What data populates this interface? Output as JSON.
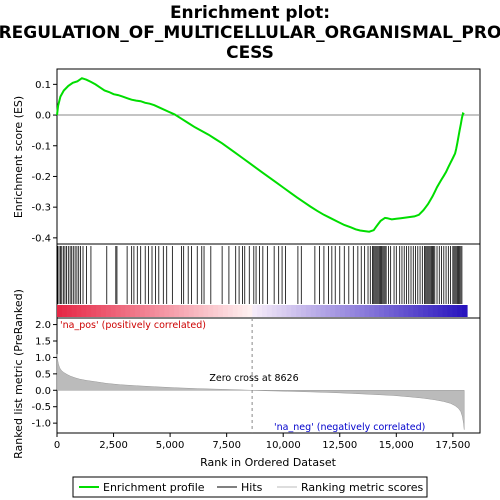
{
  "chart_data": {
    "type": "line",
    "title_lines": [
      "Enrichment plot:",
      "REGULATION_OF_MULTICELLULAR_ORGANISMAL_PRO",
      "CESS"
    ],
    "es_panel": {
      "ylabel": "Enrichment score (ES)",
      "ylim": [
        -0.42,
        0.15
      ],
      "yticks": [
        "0.1",
        "0.0",
        "-0.1",
        "-0.2",
        "-0.3",
        "-0.4"
      ],
      "ytick_values": [
        0.1,
        0.0,
        -0.1,
        -0.2,
        -0.3,
        -0.4
      ],
      "x": [
        0,
        50,
        150,
        300,
        500,
        700,
        900,
        1100,
        1300,
        1500,
        1700,
        1900,
        2100,
        2300,
        2500,
        2700,
        2900,
        3100,
        3300,
        3500,
        3700,
        3900,
        4100,
        4300,
        4600,
        4900,
        5200,
        5500,
        5800,
        6100,
        6400,
        6700,
        7000,
        7300,
        7600,
        7900,
        8200,
        8500,
        8800,
        9100,
        9400,
        9700,
        10000,
        10300,
        10600,
        10900,
        11200,
        11500,
        11800,
        12100,
        12400,
        12700,
        13000,
        13200,
        13400,
        13600,
        13800,
        14000,
        14100,
        14200,
        14300,
        14400,
        14500,
        14600,
        14700,
        14800,
        15000,
        15200,
        15400,
        15600,
        15800,
        16000,
        16200,
        16300,
        16400,
        16500,
        16600,
        16700,
        16800,
        16900,
        17000,
        17100,
        17200,
        17300,
        17400,
        17500,
        17600,
        17650,
        17700,
        17750,
        17800,
        17850,
        17900,
        17950,
        18000
      ],
      "values": [
        0.0,
        0.03,
        0.06,
        0.08,
        0.095,
        0.105,
        0.11,
        0.12,
        0.115,
        0.108,
        0.1,
        0.09,
        0.08,
        0.075,
        0.068,
        0.065,
        0.06,
        0.055,
        0.05,
        0.047,
        0.045,
        0.04,
        0.037,
        0.032,
        0.022,
        0.012,
        0.002,
        -0.012,
        -0.026,
        -0.04,
        -0.052,
        -0.064,
        -0.078,
        -0.092,
        -0.108,
        -0.124,
        -0.14,
        -0.156,
        -0.172,
        -0.188,
        -0.204,
        -0.22,
        -0.236,
        -0.252,
        -0.268,
        -0.283,
        -0.298,
        -0.312,
        -0.325,
        -0.336,
        -0.347,
        -0.358,
        -0.366,
        -0.372,
        -0.376,
        -0.378,
        -0.38,
        -0.375,
        -0.365,
        -0.355,
        -0.345,
        -0.34,
        -0.335,
        -0.336,
        -0.338,
        -0.34,
        -0.338,
        -0.336,
        -0.334,
        -0.332,
        -0.33,
        -0.325,
        -0.31,
        -0.3,
        -0.29,
        -0.278,
        -0.265,
        -0.25,
        -0.235,
        -0.222,
        -0.21,
        -0.198,
        -0.185,
        -0.17,
        -0.155,
        -0.14,
        -0.125,
        -0.11,
        -0.09,
        -0.07,
        -0.05,
        -0.03,
        -0.01,
        0.005,
        0.003
      ]
    },
    "hits_panel": {
      "positions": [
        30,
        90,
        150,
        210,
        280,
        350,
        420,
        500,
        580,
        650,
        720,
        800,
        880,
        960,
        1040,
        1150,
        1300,
        1500,
        2200,
        2600,
        2650,
        3100,
        3300,
        3400,
        3550,
        3700,
        3900,
        4050,
        4200,
        4350,
        4500,
        4700,
        4850,
        5100,
        5500,
        5600,
        5800,
        5950,
        6200,
        6400,
        6500,
        6800,
        7300,
        7600,
        7900,
        8050,
        8200,
        8300,
        8500,
        8700,
        8800,
        8950,
        9100,
        9300,
        9600,
        9800,
        9950,
        10100,
        10650,
        10800,
        11400,
        11600,
        11800,
        12000,
        12150,
        12300,
        12500,
        12700,
        12900,
        13100,
        13300,
        13450,
        13600,
        13750,
        13850,
        13950,
        14000,
        14050,
        14100,
        14150,
        14200,
        14250,
        14300,
        14350,
        14400,
        14450,
        14500,
        14550,
        14650,
        14750,
        14900,
        15000,
        15150,
        15250,
        15350,
        15450,
        15550,
        15650,
        15750,
        15850,
        15950,
        16050,
        16150,
        16250,
        16300,
        16350,
        16400,
        16450,
        16500,
        16550,
        16600,
        16650,
        16700,
        16800,
        16900,
        17000,
        17100,
        17200,
        17300,
        17400,
        17500,
        17550,
        17600,
        17650,
        17700,
        17750,
        17800,
        17850,
        17900
      ]
    },
    "metric_panel": {
      "ylabel": "Ranked list metric (PreRanked)",
      "ylim": [
        -1.3,
        2.2
      ],
      "yticks": [
        "2.0",
        "1.5",
        "1.0",
        "0.5",
        "0.0",
        "-0.5",
        "-1.0"
      ],
      "ytick_values": [
        2.0,
        1.5,
        1.0,
        0.5,
        0.0,
        -0.5,
        -1.0
      ],
      "x": [
        0,
        20,
        60,
        120,
        200,
        300,
        450,
        600,
        800,
        1000,
        1300,
        1700,
        2200,
        2800,
        3500,
        4300,
        5200,
        6200,
        7300,
        8000,
        8626,
        9300,
        10200,
        11200,
        12200,
        13200,
        14100,
        14900,
        15600,
        16200,
        16700,
        17100,
        17400,
        17600,
        17750,
        17850,
        17920,
        17970,
        18000
      ],
      "values": [
        1.1,
        0.95,
        0.8,
        0.68,
        0.6,
        0.54,
        0.48,
        0.43,
        0.38,
        0.34,
        0.3,
        0.26,
        0.21,
        0.17,
        0.14,
        0.11,
        0.08,
        0.05,
        0.03,
        0.015,
        0.0,
        -0.015,
        -0.03,
        -0.05,
        -0.07,
        -0.1,
        -0.13,
        -0.16,
        -0.2,
        -0.24,
        -0.29,
        -0.34,
        -0.4,
        -0.47,
        -0.55,
        -0.65,
        -0.8,
        -1.0,
        -1.2
      ],
      "zero_cross_label": "Zero cross at 8626",
      "zero_cross": 8626,
      "pos_label": "'na_pos' (positively correlated)",
      "neg_label": "'na_neg' (negatively correlated)"
    },
    "xlabel": "Rank in Ordered Dataset",
    "xlim": [
      0,
      18700
    ],
    "xticks": [
      "0",
      "2,500",
      "5,000",
      "7,500",
      "10,000",
      "12,500",
      "15,000",
      "17,500"
    ],
    "xtick_values": [
      0,
      2500,
      5000,
      7500,
      10000,
      12500,
      15000,
      17500
    ],
    "legend": [
      {
        "label": "Enrichment profile",
        "color": "#00dd00"
      },
      {
        "label": "Hits",
        "color": "#000000"
      },
      {
        "label": "Ranking metric scores",
        "color": "#bbbbbb"
      }
    ],
    "colors": {
      "es_line": "#00dd00",
      "metric_fill": "#bbbbbb",
      "pos_text": "#cc0000",
      "neg_text": "#0000cc",
      "zero_line": "#888888"
    }
  }
}
